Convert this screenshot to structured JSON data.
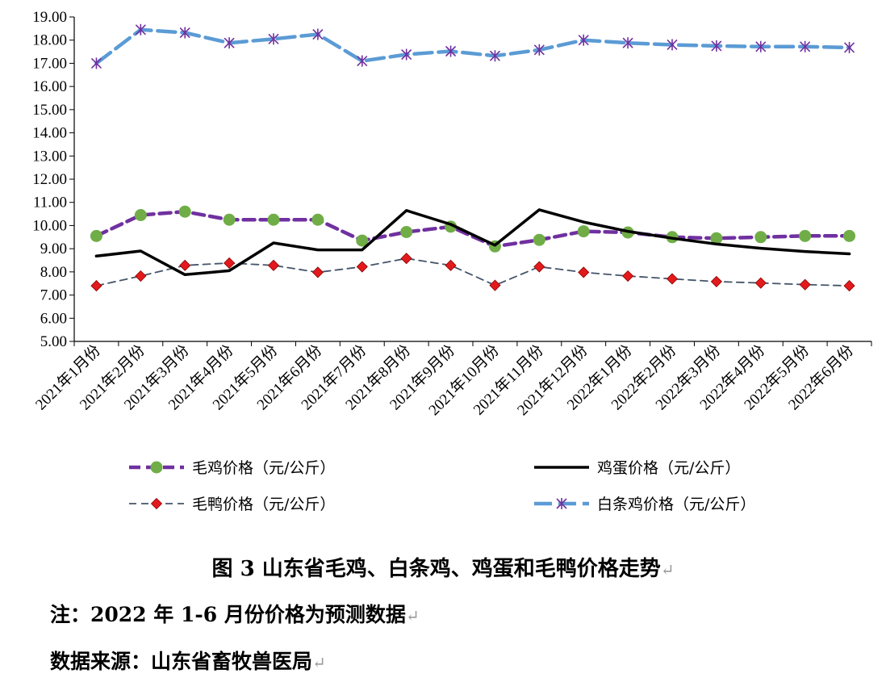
{
  "chart_data": {
    "type": "line",
    "categories": [
      "2021年1月份",
      "2021年2月份",
      "2021年3月份",
      "2021年4月份",
      "2021年5月份",
      "2021年6月份",
      "2021年7月份",
      "2021年8月份",
      "2021年9月份",
      "2021年10月份",
      "2021年11月份",
      "2021年12月份",
      "2022年1月份",
      "2022年2月份",
      "2022年3月份",
      "2022年4月份",
      "2022年5月份",
      "2022年6月份"
    ],
    "ylim": [
      5.0,
      19.0
    ],
    "ytick_step": 1.0,
    "grid": false,
    "legend_position": "bottom",
    "series": [
      {
        "name": "毛鸡价格（元/公斤）",
        "color": "#7030A0",
        "marker": "circle",
        "marker_color": "#70AD47",
        "dash": "dashed-thick",
        "values": [
          9.55,
          10.45,
          10.6,
          10.25,
          10.25,
          10.25,
          9.35,
          9.72,
          9.95,
          9.1,
          9.38,
          9.75,
          9.7,
          9.5,
          9.45,
          9.5,
          9.55,
          9.55
        ]
      },
      {
        "name": "鸡蛋价格（元/公斤）",
        "color": "#000000",
        "marker": "none",
        "dash": "solid",
        "values": [
          8.68,
          8.9,
          7.88,
          8.05,
          9.25,
          8.95,
          8.95,
          10.65,
          10.05,
          9.15,
          10.68,
          10.15,
          9.75,
          9.45,
          9.2,
          9.02,
          8.88,
          8.78
        ]
      },
      {
        "name": "毛鸭价格（元/公斤）",
        "color": "#44546A",
        "marker": "diamond",
        "marker_color": "#E31A1C",
        "dash": "dashed",
        "values": [
          7.4,
          7.82,
          8.28,
          8.38,
          8.28,
          7.98,
          8.22,
          8.58,
          8.28,
          7.42,
          8.22,
          7.98,
          7.82,
          7.7,
          7.58,
          7.52,
          7.45,
          7.4
        ]
      },
      {
        "name": "白条鸡价格（元/公斤）",
        "color": "#5B9BD5",
        "marker": "asterisk",
        "marker_color": "#7030A0",
        "dash": "long-dash",
        "values": [
          17.0,
          18.45,
          18.32,
          17.88,
          18.05,
          18.25,
          17.1,
          17.38,
          17.52,
          17.32,
          17.58,
          18.0,
          17.88,
          17.8,
          17.75,
          17.72,
          17.72,
          17.68
        ]
      }
    ]
  },
  "caption": {
    "title": "图 3  山东省毛鸡、白条鸡、鸡蛋和毛鸭价格走势",
    "note": "注：2022 年 1-6 月份价格为预测数据",
    "source": "数据来源：山东省畜牧兽医局",
    "paragraph_mark": "↵"
  }
}
